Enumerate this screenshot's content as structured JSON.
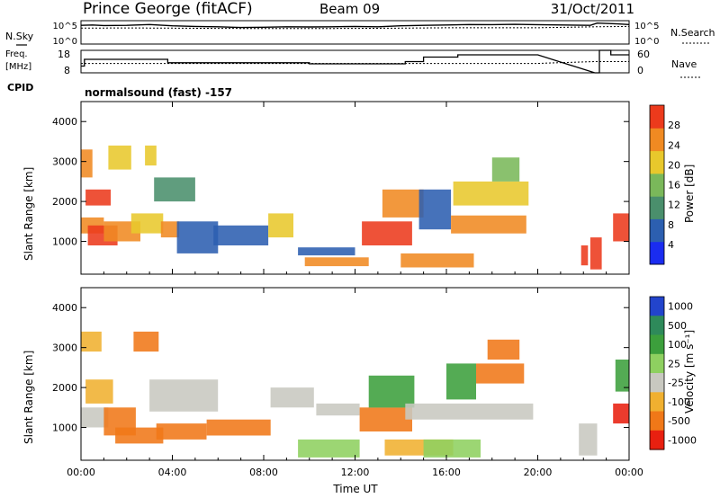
{
  "header": {
    "station": "Prince George (fitACF)",
    "beam": "Beam 09",
    "date": "31/Oct/2011"
  },
  "left_labels": {
    "nsky": "N.Sky",
    "freq_line1": "Freq.",
    "freq_line2": "[MHz]",
    "cpid": "CPID"
  },
  "right_labels": {
    "nsearch": "N.Search",
    "nave": "Nave"
  },
  "cpid_text": "normalsound (fast) -157",
  "chart_data": [
    {
      "type": "line",
      "panel": "noise",
      "series": [
        {
          "name": "N.Sky",
          "style": "solid",
          "x": [
            0,
            0.5,
            1,
            2,
            3,
            4,
            5,
            6,
            7,
            8,
            9,
            10,
            11,
            12,
            13,
            14,
            15,
            16,
            17,
            18,
            19,
            19.9,
            22.3,
            22.6,
            23,
            23.5,
            24
          ],
          "y": [
            10000,
            12000,
            9000,
            10000,
            15000,
            8000,
            6000,
            5000,
            3500,
            4000,
            5000,
            4500,
            5000,
            6000,
            5000,
            8000,
            10000,
            12000,
            15000,
            14000,
            16000,
            14000,
            10000,
            30000,
            25000,
            20000,
            15000
          ]
        },
        {
          "name": "N.Search",
          "style": "dotted",
          "x": [
            0,
            2,
            4,
            6,
            8,
            10,
            12,
            14,
            16,
            18,
            19.9,
            22.5,
            24
          ],
          "y": [
            2500,
            2800,
            2500,
            2200,
            2000,
            2000,
            2200,
            2500,
            3000,
            3000,
            3000,
            5000,
            6000
          ]
        }
      ],
      "yticks": [
        "10^5",
        "10^0"
      ],
      "right_yticks": [
        "10^5",
        "10^0"
      ],
      "log": true
    },
    {
      "type": "line",
      "panel": "frequency",
      "series": [
        {
          "name": "Freq.",
          "style": "solid",
          "x": [
            0,
            0.15,
            0.15,
            3.8,
            3.8,
            10,
            10,
            14.2,
            14.2,
            15,
            15,
            16.5,
            16.5,
            20,
            22.5,
            22.7,
            22.7,
            23.2,
            23.2,
            24
          ],
          "y": [
            11,
            11,
            14,
            14,
            12.5,
            12.5,
            12,
            12,
            13,
            13,
            15,
            15,
            16,
            16,
            8,
            8,
            18,
            18,
            16,
            16
          ]
        },
        {
          "name": "Nave",
          "style": "dotted",
          "x": [
            0,
            4,
            8,
            12,
            16,
            19.9,
            22.5,
            24
          ],
          "y": [
            25,
            25,
            25,
            25,
            25,
            25,
            30,
            30
          ]
        }
      ],
      "yticks": [
        "18",
        "8"
      ],
      "right_yticks": [
        "60",
        "0"
      ]
    },
    {
      "type": "heatmap",
      "panel": "power",
      "ylabel": "Slant Range [km]",
      "ylim": [
        180,
        4500
      ],
      "yticks": [
        "1000",
        "2000",
        "3000",
        "4000"
      ],
      "xlim": [
        0,
        24
      ],
      "colorbar": {
        "label": "Power [dB]",
        "ticks": [
          "4",
          "8",
          "12",
          "16",
          "20",
          "24",
          "28"
        ],
        "colors": [
          "#1a2cf0",
          "#2c5fb0",
          "#4a8f6c",
          "#7ab85a",
          "#e8c82c",
          "#f08a22",
          "#ec3a1c"
        ]
      },
      "patches": [
        {
          "x0": 0.0,
          "x1": 1.0,
          "y0": 1200,
          "y1": 1600,
          "level": 5
        },
        {
          "x0": 0.3,
          "x1": 1.6,
          "y0": 900,
          "y1": 1400,
          "level": 6
        },
        {
          "x0": 1.0,
          "x1": 2.6,
          "y0": 1000,
          "y1": 1500,
          "level": 5
        },
        {
          "x0": 0.2,
          "x1": 1.3,
          "y0": 1900,
          "y1": 2300,
          "level": 6
        },
        {
          "x0": 0.0,
          "x1": 0.5,
          "y0": 2600,
          "y1": 3300,
          "level": 5
        },
        {
          "x0": 2.2,
          "x1": 3.6,
          "y0": 1200,
          "y1": 1700,
          "level": 4
        },
        {
          "x0": 3.5,
          "x1": 4.3,
          "y0": 1100,
          "y1": 1500,
          "level": 5
        },
        {
          "x0": 3.2,
          "x1": 5.0,
          "y0": 2000,
          "y1": 2600,
          "level": 2
        },
        {
          "x0": 4.2,
          "x1": 6.0,
          "y0": 700,
          "y1": 1500,
          "level": 1
        },
        {
          "x0": 5.8,
          "x1": 8.2,
          "y0": 900,
          "y1": 1400,
          "level": 1
        },
        {
          "x0": 8.2,
          "x1": 9.3,
          "y0": 1100,
          "y1": 1700,
          "level": 4
        },
        {
          "x0": 9.5,
          "x1": 12.0,
          "y0": 650,
          "y1": 850,
          "level": 1
        },
        {
          "x0": 9.8,
          "x1": 12.6,
          "y0": 380,
          "y1": 600,
          "level": 5
        },
        {
          "x0": 12.3,
          "x1": 14.5,
          "y0": 900,
          "y1": 1500,
          "level": 6
        },
        {
          "x0": 13.2,
          "x1": 15.0,
          "y0": 1600,
          "y1": 2300,
          "level": 5
        },
        {
          "x0": 14.0,
          "x1": 17.2,
          "y0": 350,
          "y1": 700,
          "level": 5
        },
        {
          "x0": 14.8,
          "x1": 16.2,
          "y0": 1300,
          "y1": 2300,
          "level": 1
        },
        {
          "x0": 16.2,
          "x1": 19.5,
          "y0": 1200,
          "y1": 1650,
          "level": 5
        },
        {
          "x0": 16.3,
          "x1": 19.6,
          "y0": 1900,
          "y1": 2500,
          "level": 4
        },
        {
          "x0": 18.0,
          "x1": 19.2,
          "y0": 2500,
          "y1": 3100,
          "level": 3
        },
        {
          "x0": 1.2,
          "x1": 2.2,
          "y0": 2800,
          "y1": 3400,
          "level": 4
        },
        {
          "x0": 2.8,
          "x1": 3.3,
          "y0": 2900,
          "y1": 3400,
          "level": 4
        },
        {
          "x0": 23.3,
          "x1": 24.0,
          "y0": 1000,
          "y1": 1700,
          "level": 6
        },
        {
          "x0": 22.3,
          "x1": 22.8,
          "y0": 300,
          "y1": 1100,
          "level": 6
        },
        {
          "x0": 21.9,
          "x1": 22.2,
          "y0": 400,
          "y1": 900,
          "level": 6
        }
      ]
    },
    {
      "type": "heatmap",
      "panel": "velocity",
      "ylabel": "Slant Range [km]",
      "xlabel": "Time UT",
      "ylim": [
        180,
        4500
      ],
      "yticks": [
        "1000",
        "2000",
        "3000",
        "4000"
      ],
      "xlim": [
        0,
        24
      ],
      "xticks": [
        "00:00",
        "04:00",
        "08:00",
        "12:00",
        "16:00",
        "20:00",
        "00:00"
      ],
      "colorbar": {
        "label": "Velocity [m s⁻¹]",
        "ticks": [
          "1000",
          "500",
          "100",
          "25",
          "-25",
          "-100",
          "-500",
          "-1000"
        ],
        "colors": [
          "#2244cc",
          "#2e8a5a",
          "#3c9f3c",
          "#8ed060",
          "#c8c8c0",
          "#f0b030",
          "#f07818",
          "#e82010"
        ]
      },
      "patches": [
        {
          "x0": 0.0,
          "x1": 1.2,
          "y0": 1000,
          "y1": 1500,
          "level": 4
        },
        {
          "x0": 1.0,
          "x1": 2.4,
          "y0": 800,
          "y1": 1500,
          "level": 6
        },
        {
          "x0": 1.5,
          "x1": 3.6,
          "y0": 600,
          "y1": 1000,
          "level": 6
        },
        {
          "x0": 0.2,
          "x1": 1.4,
          "y0": 1600,
          "y1": 2200,
          "level": 5
        },
        {
          "x0": 3.0,
          "x1": 6.0,
          "y0": 1400,
          "y1": 2200,
          "level": 4
        },
        {
          "x0": 3.3,
          "x1": 5.5,
          "y0": 700,
          "y1": 1100,
          "level": 6
        },
        {
          "x0": 5.5,
          "x1": 8.3,
          "y0": 800,
          "y1": 1200,
          "level": 6
        },
        {
          "x0": 8.3,
          "x1": 10.2,
          "y0": 1500,
          "y1": 2000,
          "level": 4
        },
        {
          "x0": 9.5,
          "x1": 12.2,
          "y0": 250,
          "y1": 700,
          "level": 3
        },
        {
          "x0": 10.3,
          "x1": 12.2,
          "y0": 1300,
          "y1": 1600,
          "level": 4
        },
        {
          "x0": 12.2,
          "x1": 14.5,
          "y0": 900,
          "y1": 1500,
          "level": 6
        },
        {
          "x0": 12.6,
          "x1": 14.6,
          "y0": 1500,
          "y1": 2300,
          "level": 2
        },
        {
          "x0": 13.3,
          "x1": 16.3,
          "y0": 300,
          "y1": 700,
          "level": 5
        },
        {
          "x0": 15.0,
          "x1": 17.5,
          "y0": 250,
          "y1": 700,
          "level": 3
        },
        {
          "x0": 14.2,
          "x1": 19.8,
          "y0": 1200,
          "y1": 1600,
          "level": 4
        },
        {
          "x0": 16.0,
          "x1": 17.3,
          "y0": 1700,
          "y1": 2600,
          "level": 2
        },
        {
          "x0": 17.3,
          "x1": 19.4,
          "y0": 2100,
          "y1": 2600,
          "level": 6
        },
        {
          "x0": 17.8,
          "x1": 19.2,
          "y0": 2700,
          "y1": 3200,
          "level": 6
        },
        {
          "x0": 0.0,
          "x1": 0.9,
          "y0": 2900,
          "y1": 3400,
          "level": 5
        },
        {
          "x0": 2.3,
          "x1": 3.4,
          "y0": 2900,
          "y1": 3400,
          "level": 6
        },
        {
          "x0": 23.3,
          "x1": 24.0,
          "y0": 1100,
          "y1": 1600,
          "level": 7
        },
        {
          "x0": 23.4,
          "x1": 24.0,
          "y0": 1900,
          "y1": 2700,
          "level": 2
        },
        {
          "x0": 21.8,
          "x1": 22.6,
          "y0": 300,
          "y1": 1100,
          "level": 4
        }
      ]
    }
  ]
}
